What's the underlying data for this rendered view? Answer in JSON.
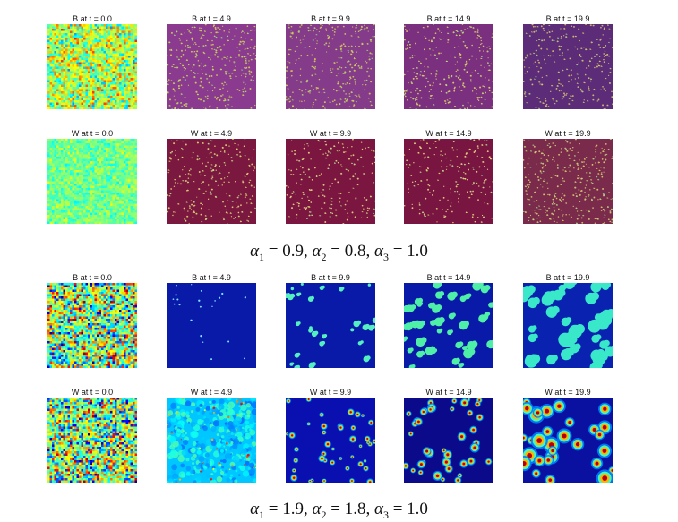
{
  "groups": [
    {
      "caption": {
        "a1": "0.9",
        "a2": "0.8",
        "a3": "1.0"
      },
      "rows": [
        {
          "variable": "B",
          "titles": [
            "B at t = 0.0",
            "B at t = 4.9",
            "B at t = 9.9",
            "B at t = 14.9",
            "B at t = 19.9"
          ]
        },
        {
          "variable": "W",
          "titles": [
            "W at t = 0.0",
            "W at t = 4.9",
            "W at t = 9.9",
            "W at t = 14.9",
            "W at t = 19.9"
          ]
        }
      ]
    },
    {
      "caption": {
        "a1": "1.9",
        "a2": "1.8",
        "a3": "1.0"
      },
      "rows": [
        {
          "variable": "B",
          "titles": [
            "B at t = 0.0",
            "B at t = 4.9",
            "B at t = 9.9",
            "B at t = 14.9",
            "B at t = 19.9"
          ]
        },
        {
          "variable": "W",
          "titles": [
            "W at t = 0.0",
            "W at t = 4.9",
            "W at t = 9.9",
            "W at t = 14.9",
            "W at t = 19.9"
          ]
        }
      ]
    }
  ],
  "colormap": "jet"
}
